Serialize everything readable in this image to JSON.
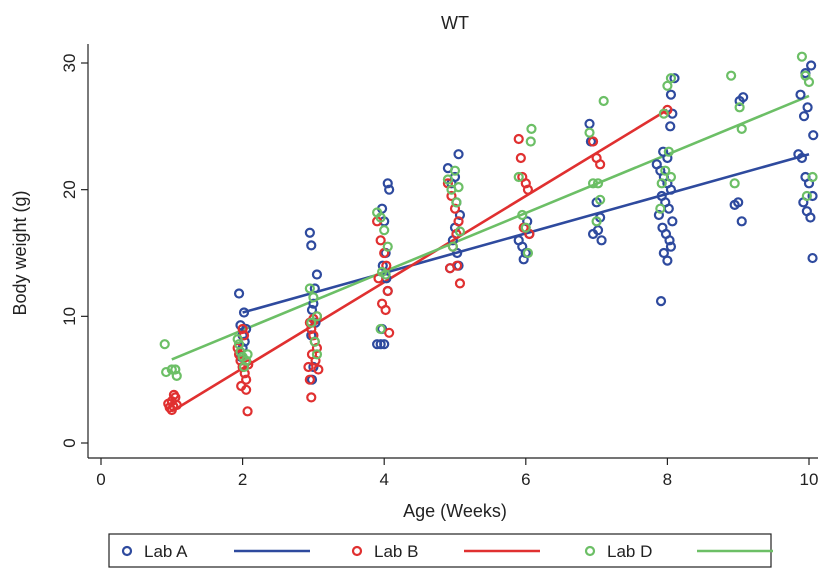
{
  "chart_data": {
    "type": "scatter",
    "title": "WT",
    "xlabel": "Age (Weeks)",
    "ylabel": "Body weight (g)",
    "xlim": [
      0,
      10
    ],
    "ylim": [
      0,
      30
    ],
    "xticks": [
      0,
      2,
      4,
      6,
      8,
      10
    ],
    "yticks": [
      0,
      10,
      20,
      30
    ],
    "grid": false,
    "legend_position": "bottom",
    "series": [
      {
        "name": "Lab A",
        "color": "#2e4a9e",
        "points": [
          [
            1.95,
            11.8
          ],
          [
            1.97,
            9.3
          ],
          [
            2.0,
            8.5
          ],
          [
            2.02,
            10.3
          ],
          [
            2.05,
            9.0
          ],
          [
            2.0,
            7.5
          ],
          [
            1.98,
            6.8
          ],
          [
            2.03,
            8.0
          ],
          [
            2.95,
            16.6
          ],
          [
            2.97,
            15.6
          ],
          [
            3.05,
            13.3
          ],
          [
            3.02,
            12.2
          ],
          [
            3.0,
            11.0
          ],
          [
            2.98,
            10.5
          ],
          [
            3.03,
            9.5
          ],
          [
            2.97,
            8.5
          ],
          [
            3.0,
            6.0
          ],
          [
            2.98,
            5.0
          ],
          [
            3.9,
            7.8
          ],
          [
            3.95,
            7.8
          ],
          [
            4.0,
            7.8
          ],
          [
            4.05,
            20.5
          ],
          [
            4.07,
            20.0
          ],
          [
            3.97,
            18.5
          ],
          [
            4.0,
            17.5
          ],
          [
            4.02,
            15.0
          ],
          [
            3.98,
            14.0
          ],
          [
            4.03,
            13.0
          ],
          [
            4.05,
            12.0
          ],
          [
            3.97,
            9.0
          ],
          [
            4.9,
            21.7
          ],
          [
            5.05,
            22.8
          ],
          [
            5.0,
            21.0
          ],
          [
            4.95,
            20.5
          ],
          [
            5.02,
            19.0
          ],
          [
            5.07,
            18.0
          ],
          [
            5.0,
            17.0
          ],
          [
            4.97,
            16.0
          ],
          [
            5.03,
            15.0
          ],
          [
            5.05,
            14.0
          ],
          [
            4.93,
            13.8
          ],
          [
            5.9,
            16.0
          ],
          [
            5.95,
            15.5
          ],
          [
            6.0,
            15.0
          ],
          [
            5.97,
            14.5
          ],
          [
            6.05,
            16.5
          ],
          [
            6.02,
            17.5
          ],
          [
            6.9,
            25.2
          ],
          [
            6.92,
            23.8
          ],
          [
            7.0,
            19.0
          ],
          [
            7.05,
            17.8
          ],
          [
            7.02,
            16.8
          ],
          [
            6.95,
            16.5
          ],
          [
            7.07,
            16.0
          ],
          [
            7.85,
            22.0
          ],
          [
            7.9,
            21.5
          ],
          [
            7.95,
            21.0
          ],
          [
            8.0,
            20.5
          ],
          [
            8.05,
            20.0
          ],
          [
            7.92,
            19.5
          ],
          [
            7.97,
            19.0
          ],
          [
            8.02,
            18.5
          ],
          [
            7.88,
            18.0
          ],
          [
            8.07,
            17.5
          ],
          [
            7.93,
            17.0
          ],
          [
            7.98,
            16.5
          ],
          [
            8.03,
            16.0
          ],
          [
            8.05,
            15.5
          ],
          [
            7.95,
            15.0
          ],
          [
            8.0,
            14.4
          ],
          [
            7.91,
            11.2
          ],
          [
            8.05,
            27.5
          ],
          [
            8.07,
            26.0
          ],
          [
            8.1,
            28.8
          ],
          [
            8.04,
            25.0
          ],
          [
            7.94,
            23.0
          ],
          [
            8.0,
            22.5
          ],
          [
            9.0,
            19.0
          ],
          [
            9.05,
            17.5
          ],
          [
            8.95,
            18.8
          ],
          [
            9.07,
            27.3
          ],
          [
            9.02,
            27.0
          ],
          [
            9.85,
            22.8
          ],
          [
            9.9,
            22.5
          ],
          [
            9.95,
            21.0
          ],
          [
            10.0,
            20.5
          ],
          [
            10.05,
            19.5
          ],
          [
            9.92,
            19.0
          ],
          [
            9.97,
            18.3
          ],
          [
            10.02,
            17.8
          ],
          [
            10.05,
            14.6
          ],
          [
            9.88,
            27.5
          ],
          [
            9.95,
            29.2
          ],
          [
            10.03,
            29.8
          ],
          [
            9.98,
            26.5
          ],
          [
            10.06,
            24.3
          ],
          [
            9.93,
            25.8
          ]
        ]
      },
      {
        "name": "Lab B",
        "color": "#e03030",
        "points": [
          [
            0.95,
            3.1
          ],
          [
            1.0,
            3.3
          ],
          [
            1.02,
            2.9
          ],
          [
            1.05,
            3.6
          ],
          [
            0.97,
            2.8
          ],
          [
            1.03,
            3.8
          ],
          [
            1.07,
            3.0
          ],
          [
            1.0,
            2.6
          ],
          [
            1.95,
            7.0
          ],
          [
            1.97,
            6.5
          ],
          [
            2.0,
            6.0
          ],
          [
            2.03,
            5.5
          ],
          [
            2.05,
            5.0
          ],
          [
            1.98,
            4.5
          ],
          [
            2.02,
            8.5
          ],
          [
            2.0,
            9.0
          ],
          [
            2.05,
            4.2
          ],
          [
            2.07,
            2.5
          ],
          [
            1.93,
            7.5
          ],
          [
            2.08,
            6.2
          ],
          [
            2.95,
            9.5
          ],
          [
            2.97,
            9.0
          ],
          [
            3.0,
            8.5
          ],
          [
            3.02,
            8.0
          ],
          [
            3.05,
            7.5
          ],
          [
            2.98,
            7.0
          ],
          [
            3.03,
            6.5
          ],
          [
            2.93,
            6.0
          ],
          [
            2.95,
            5.0
          ],
          [
            2.97,
            3.6
          ],
          [
            3.05,
            10.0
          ],
          [
            3.07,
            5.8
          ],
          [
            3.0,
            9.8
          ],
          [
            3.9,
            17.5
          ],
          [
            3.95,
            16.0
          ],
          [
            4.0,
            15.0
          ],
          [
            4.03,
            14.0
          ],
          [
            4.05,
            12.0
          ],
          [
            3.97,
            11.0
          ],
          [
            4.02,
            10.5
          ],
          [
            4.07,
            8.7
          ],
          [
            3.92,
            13.0
          ],
          [
            4.9,
            20.5
          ],
          [
            4.95,
            19.5
          ],
          [
            5.0,
            18.5
          ],
          [
            5.05,
            17.5
          ],
          [
            5.02,
            16.5
          ],
          [
            4.97,
            15.5
          ],
          [
            5.03,
            14.0
          ],
          [
            4.93,
            13.8
          ],
          [
            5.07,
            12.6
          ],
          [
            5.9,
            24.0
          ],
          [
            5.93,
            22.5
          ],
          [
            5.95,
            21.0
          ],
          [
            6.0,
            20.5
          ],
          [
            6.03,
            20.0
          ],
          [
            5.97,
            17.0
          ],
          [
            6.05,
            16.5
          ],
          [
            6.95,
            23.8
          ],
          [
            7.0,
            22.5
          ],
          [
            7.05,
            22.0
          ],
          [
            8.0,
            26.3
          ]
        ]
      },
      {
        "name": "Lab D",
        "color": "#6cbf66",
        "points": [
          [
            0.9,
            7.8
          ],
          [
            0.92,
            5.6
          ],
          [
            1.0,
            5.8
          ],
          [
            1.05,
            5.8
          ],
          [
            1.07,
            5.3
          ],
          [
            1.95,
            7.8
          ],
          [
            1.97,
            7.2
          ],
          [
            2.0,
            6.8
          ],
          [
            2.05,
            6.5
          ],
          [
            2.02,
            6.0
          ],
          [
            2.07,
            7.0
          ],
          [
            1.93,
            8.2
          ],
          [
            2.95,
            12.2
          ],
          [
            3.0,
            11.5
          ],
          [
            3.05,
            10.0
          ],
          [
            2.97,
            9.5
          ],
          [
            3.02,
            8.0
          ],
          [
            3.05,
            7.0
          ],
          [
            3.9,
            18.2
          ],
          [
            3.95,
            17.8
          ],
          [
            4.0,
            16.8
          ],
          [
            4.05,
            15.5
          ],
          [
            3.97,
            13.5
          ],
          [
            4.02,
            13.3
          ],
          [
            3.95,
            9.0
          ],
          [
            4.9,
            20.8
          ],
          [
            4.95,
            20.0
          ],
          [
            5.0,
            21.5
          ],
          [
            5.05,
            20.2
          ],
          [
            5.02,
            19.0
          ],
          [
            4.97,
            15.5
          ],
          [
            5.07,
            16.7
          ],
          [
            5.9,
            21.0
          ],
          [
            6.08,
            24.8
          ],
          [
            6.07,
            23.8
          ],
          [
            5.95,
            18.0
          ],
          [
            6.0,
            17.0
          ],
          [
            6.03,
            15.0
          ],
          [
            6.9,
            24.5
          ],
          [
            7.1,
            27.0
          ],
          [
            6.95,
            20.5
          ],
          [
            7.02,
            20.5
          ],
          [
            7.05,
            19.2
          ],
          [
            7.0,
            17.5
          ],
          [
            8.0,
            28.2
          ],
          [
            8.05,
            28.8
          ],
          [
            7.95,
            26.0
          ],
          [
            8.02,
            23.0
          ],
          [
            7.92,
            20.5
          ],
          [
            7.97,
            21.5
          ],
          [
            8.05,
            21.0
          ],
          [
            7.9,
            18.5
          ],
          [
            8.9,
            29.0
          ],
          [
            9.02,
            26.5
          ],
          [
            9.05,
            24.8
          ],
          [
            8.95,
            20.5
          ],
          [
            9.9,
            30.5
          ],
          [
            9.95,
            29.0
          ],
          [
            10.0,
            28.5
          ],
          [
            10.05,
            21.0
          ],
          [
            9.97,
            19.5
          ]
        ]
      }
    ],
    "fits": [
      {
        "name": "Lab A",
        "color": "#2e4a9e",
        "x": [
          2,
          10
        ],
        "y": [
          10.3,
          22.8
        ]
      },
      {
        "name": "Lab B",
        "color": "#e03030",
        "x": [
          1,
          8
        ],
        "y": [
          2.5,
          26.3
        ]
      },
      {
        "name": "Lab D",
        "color": "#6cbf66",
        "x": [
          1,
          10
        ],
        "y": [
          6.6,
          27.4
        ]
      }
    ],
    "legend": [
      {
        "label": "Lab A",
        "color": "#2e4a9e"
      },
      {
        "label": "Lab B",
        "color": "#e03030"
      },
      {
        "label": "Lab D",
        "color": "#6cbf66"
      }
    ]
  }
}
